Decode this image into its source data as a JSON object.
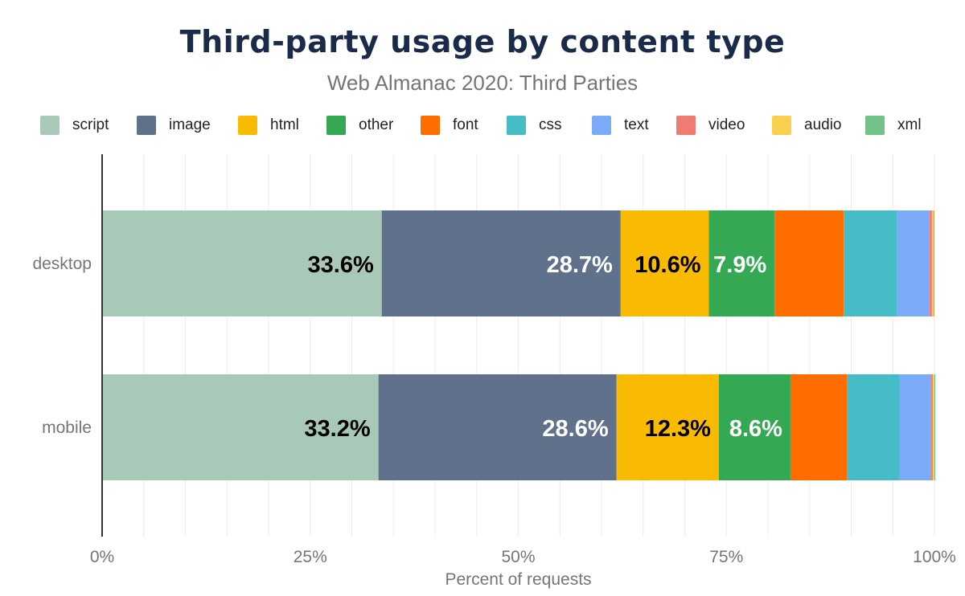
{
  "title": "Third-party usage by content type",
  "subtitle": "Web Almanac 2020: Third Parties",
  "chart_data": {
    "type": "bar",
    "orientation": "horizontal",
    "stacked": true,
    "categories": [
      "desktop",
      "mobile"
    ],
    "series": [
      {
        "name": "script",
        "color": "#a8c8b8",
        "values": [
          33.6,
          33.2
        ],
        "labels": [
          "33.6%",
          "33.2%"
        ],
        "label_color": "#000000"
      },
      {
        "name": "image",
        "color": "#60718b",
        "values": [
          28.7,
          28.6
        ],
        "labels": [
          "28.7%",
          "28.6%"
        ],
        "label_color": "#ffffff"
      },
      {
        "name": "html",
        "color": "#f9bb01",
        "values": [
          10.6,
          12.3
        ],
        "labels": [
          "10.6%",
          "12.3%"
        ],
        "label_color": "#000000"
      },
      {
        "name": "other",
        "color": "#34a853",
        "values": [
          7.9,
          8.6
        ],
        "labels": [
          "7.9%",
          "8.6%"
        ],
        "label_color": "#ffffff"
      },
      {
        "name": "font",
        "color": "#ff6d01",
        "values": [
          8.3,
          6.8
        ],
        "labels": [
          "",
          ""
        ],
        "label_color": "#ffffff"
      },
      {
        "name": "css",
        "color": "#46bdc6",
        "values": [
          6.4,
          6.3
        ],
        "labels": [
          "",
          ""
        ],
        "label_color": "#ffffff"
      },
      {
        "name": "text",
        "color": "#7baaf7",
        "values": [
          3.9,
          3.8
        ],
        "labels": [
          "",
          ""
        ],
        "label_color": "#ffffff"
      },
      {
        "name": "video",
        "color": "#f07b72",
        "values": [
          0.3,
          0.2
        ],
        "labels": [
          "",
          ""
        ],
        "label_color": "#ffffff"
      },
      {
        "name": "audio",
        "color": "#fcd04f",
        "values": [
          0.2,
          0.2
        ],
        "labels": [
          "",
          ""
        ],
        "label_color": "#ffffff"
      },
      {
        "name": "xml",
        "color": "#71c287",
        "values": [
          0.1,
          0.1
        ],
        "labels": [
          "",
          ""
        ],
        "label_color": "#ffffff"
      }
    ],
    "xlabel": "Percent of requests",
    "ylabel": "",
    "xlim": [
      0,
      100
    ],
    "x_ticks": [
      0,
      25,
      50,
      75,
      100
    ],
    "x_tick_labels": [
      "0%",
      "25%",
      "50%",
      "75%",
      "100%"
    ],
    "grid": true,
    "legend_position": "top"
  }
}
